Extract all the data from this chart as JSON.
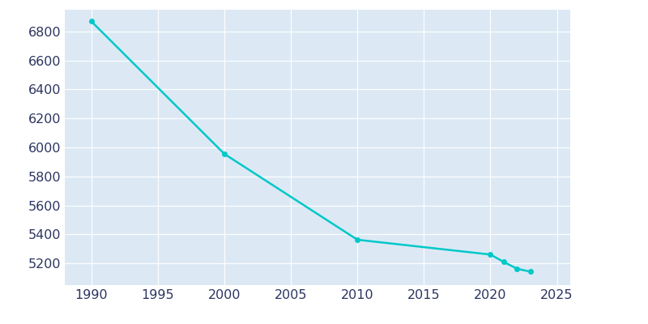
{
  "years": [
    1990,
    2000,
    2010,
    2020,
    2021,
    2022,
    2023
  ],
  "population": [
    6869,
    5955,
    5363,
    5261,
    5210,
    5163,
    5143
  ],
  "line_color": "#00C8C8",
  "marker_style": "o",
  "marker_size": 4,
  "line_width": 1.8,
  "background_color": "#dce9f5",
  "plot_bg_color": "#dce9f5",
  "outer_bg_color": "#ffffff",
  "xlim": [
    1988,
    2026
  ],
  "ylim": [
    5050,
    6950
  ],
  "yticks": [
    5200,
    5400,
    5600,
    5800,
    6000,
    6200,
    6400,
    6600,
    6800
  ],
  "xticks": [
    1990,
    1995,
    2000,
    2005,
    2010,
    2015,
    2020,
    2025
  ],
  "grid_color": "#ffffff",
  "tick_label_color": "#2d3561",
  "tick_fontsize": 11.5
}
